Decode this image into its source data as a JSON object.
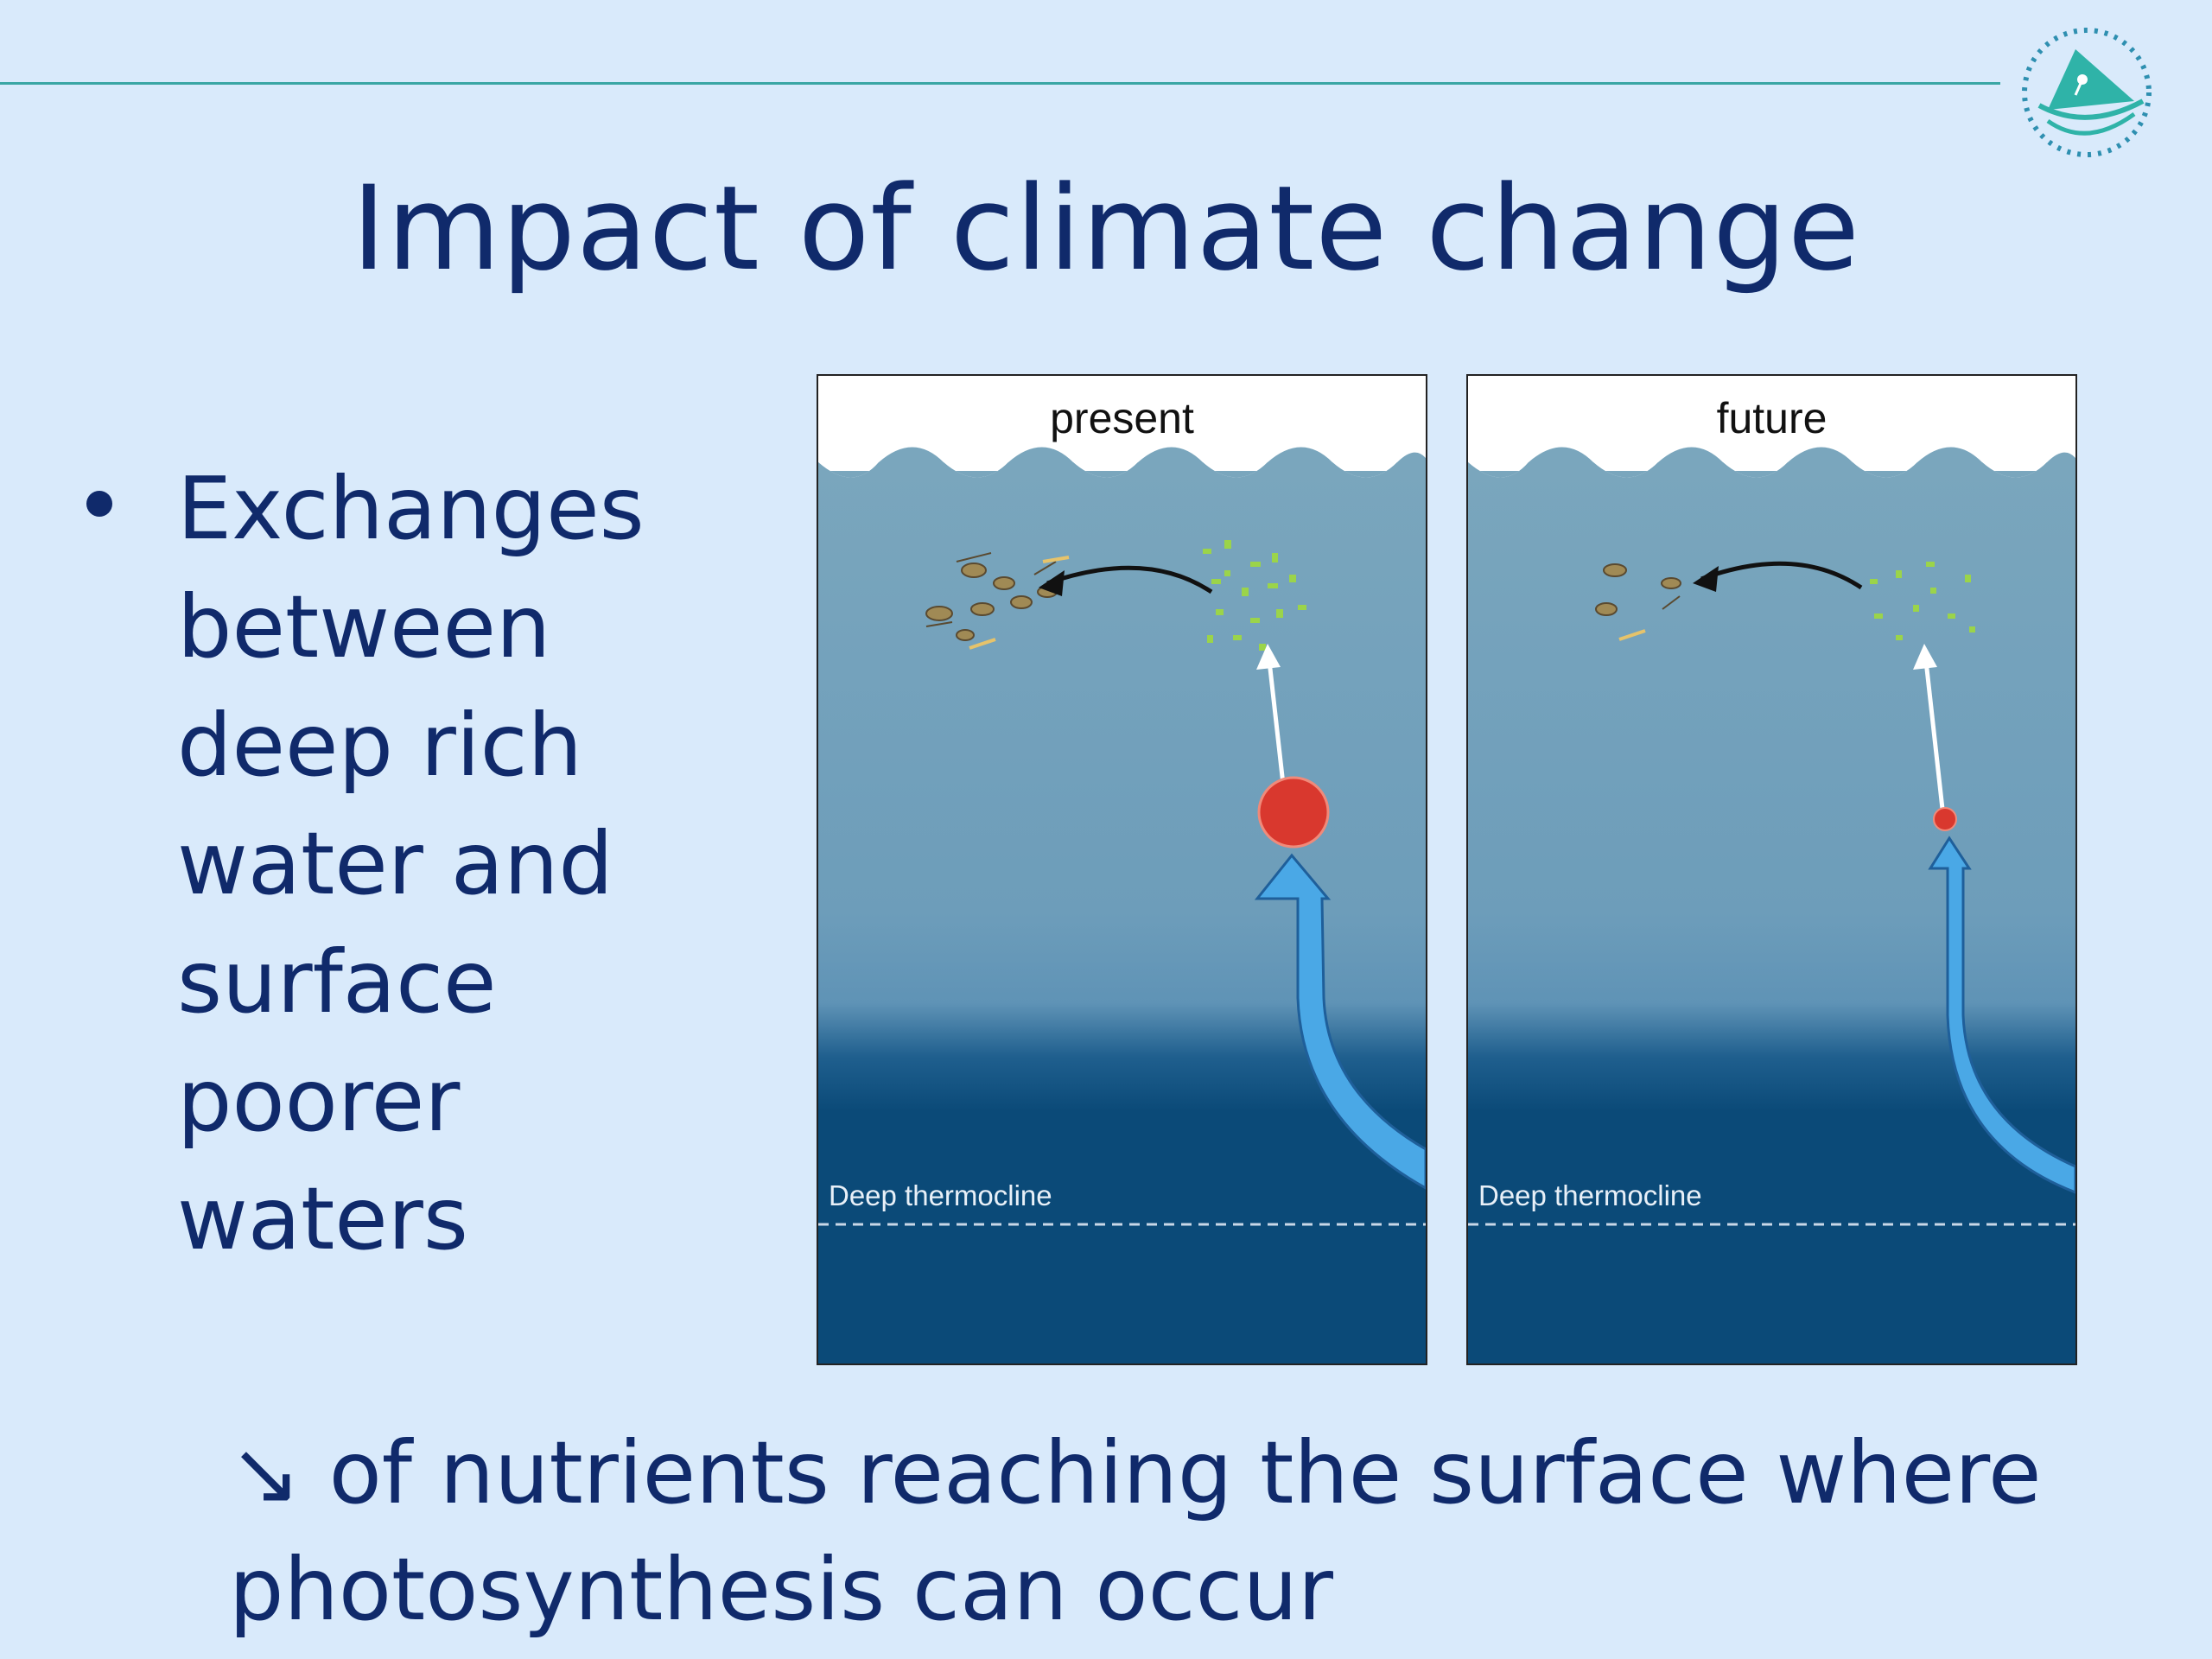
{
  "slide": {
    "title": "Impact of climate change",
    "bullet": "Exchanges between deep rich water and surface poorer waters",
    "bottom_arrow": "↘",
    "bottom_line1": "of nutrients reaching the surface where",
    "bottom_line2": "photosynthesis can occur"
  },
  "diagram": {
    "panels": [
      {
        "label": "present",
        "thermocline_label": "Deep thermocline"
      },
      {
        "label": "future",
        "thermocline_label": "Deep thermocline"
      }
    ]
  },
  "colors": {
    "background": "#d9eafb",
    "text": "#102a6b",
    "rule": "#3aa6a4",
    "surface_water": "#7aa6bd",
    "deep_water": "#0b4a78",
    "upwelling_arrow": "#4aa8e6",
    "nutrient_dot": "#d9382e",
    "phytoplankton": "#9bd44a"
  }
}
